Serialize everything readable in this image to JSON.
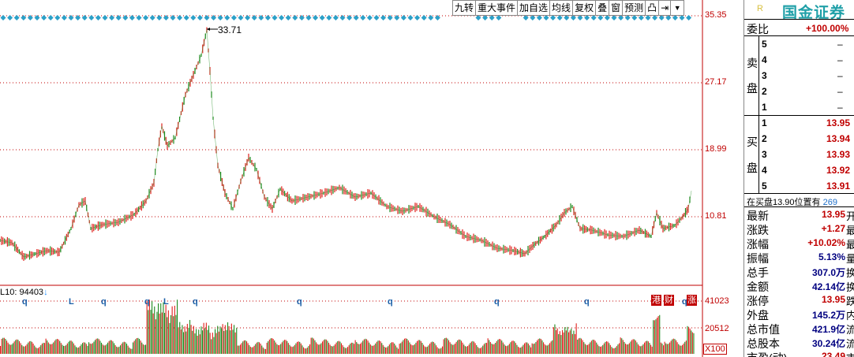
{
  "toolbar": {
    "buttons": [
      "九转",
      "重大事件",
      "加自选",
      "均线",
      "复权",
      "叠",
      "窗",
      "预测",
      "凸",
      "⇥"
    ],
    "dropdown_glyph": "▼"
  },
  "price_axis": [
    "35.35",
    "27.17",
    "18.99",
    "10.81"
  ],
  "volume_axis": [
    "41023",
    "20512"
  ],
  "volume_unit": "X100",
  "volume_title": "L10: 94403",
  "volume_arrow": "↓",
  "peak_label": "33.71",
  "markers": [
    "q",
    "L",
    "q",
    "q",
    "L",
    "q",
    "q",
    "q",
    "q",
    "q",
    "q"
  ],
  "tags": [
    "港",
    "财",
    "涨"
  ],
  "panel": {
    "brand": "国金证券",
    "brand_mark": "R",
    "weibi_label": "委比",
    "weibi_value": "+100.00%",
    "sell_label": [
      "卖",
      "盘"
    ],
    "buy_label": [
      "买",
      "盘"
    ],
    "sell_levels": [
      {
        "idx": "5",
        "price": "–"
      },
      {
        "idx": "4",
        "price": "–"
      },
      {
        "idx": "3",
        "price": "–"
      },
      {
        "idx": "2",
        "price": "–"
      },
      {
        "idx": "1",
        "price": "–"
      }
    ],
    "buy_levels": [
      {
        "idx": "1",
        "price": "13.95"
      },
      {
        "idx": "2",
        "price": "13.94"
      },
      {
        "idx": "3",
        "price": "13.93"
      },
      {
        "idx": "4",
        "price": "13.92"
      },
      {
        "idx": "5",
        "price": "13.91"
      }
    ],
    "queue_text": "在买盘13.90位置有",
    "queue_count": "269",
    "stats": [
      {
        "label": "最新",
        "value": "13.95",
        "tail": "开"
      },
      {
        "label": "涨跌",
        "value": "+1.27",
        "tail": "最"
      },
      {
        "label": "涨幅",
        "value": "+10.02%",
        "tail": "最"
      },
      {
        "label": "振幅",
        "value": "5.13%",
        "tail": "量"
      },
      {
        "label": "总手",
        "value": "307.0万",
        "tail": "换"
      },
      {
        "label": "金额",
        "value": "42.14亿",
        "tail": "换"
      },
      {
        "label": "涨停",
        "value": "13.95",
        "tail": "跌"
      },
      {
        "label": "外盘",
        "value": "145.2万",
        "tail": "内"
      },
      {
        "label": "总市值",
        "value": "421.9亿",
        "tail": "流"
      },
      {
        "label": "总股本",
        "value": "30.24亿",
        "tail": "流"
      },
      {
        "label": "市盈(动)",
        "value": "23.49",
        "tail": "市"
      }
    ]
  },
  "colors": {
    "up": "#e0201c",
    "down": "#1e8a1e",
    "accent": "#c00000",
    "diamond": "#2ca0c8",
    "brand": "#20a0a8"
  }
}
